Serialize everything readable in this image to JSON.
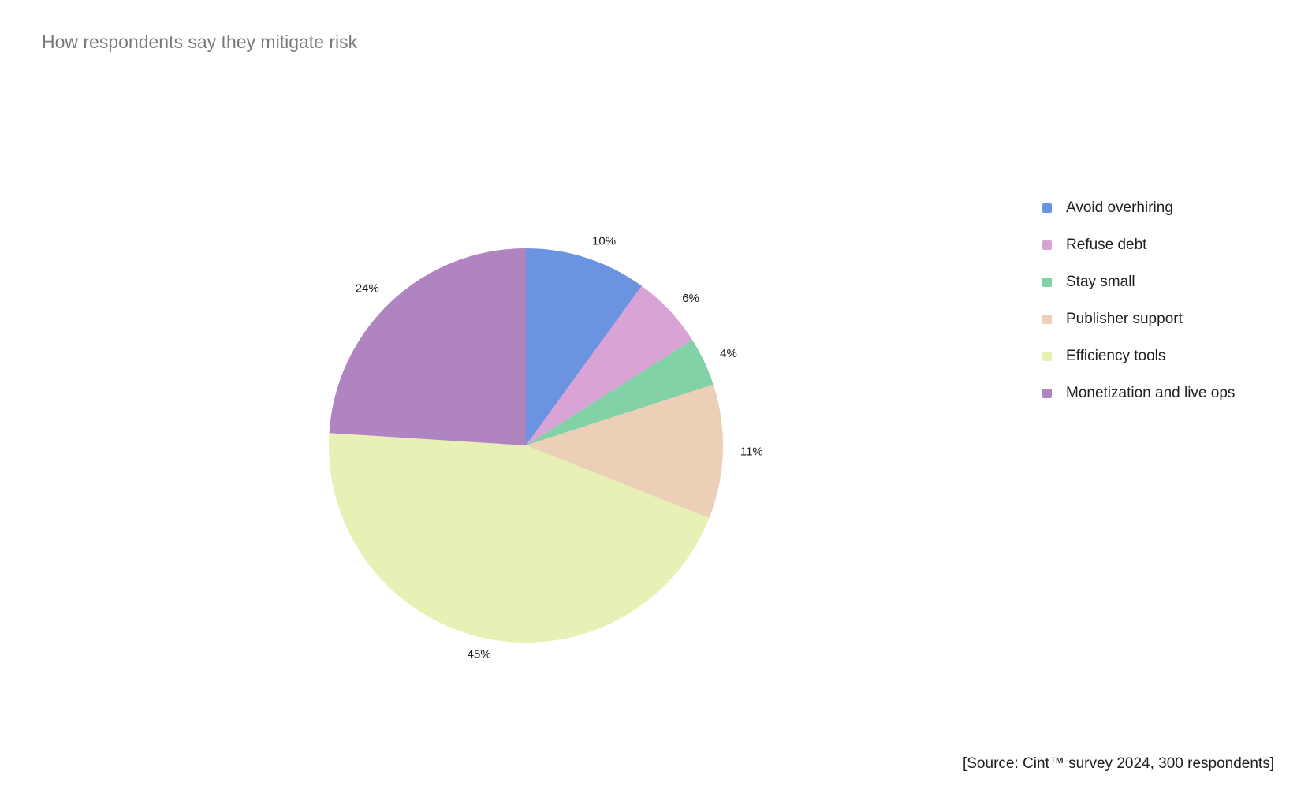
{
  "chart_data": {
    "type": "pie",
    "title": "How respondents say they mitigate risk",
    "categories": [
      "Avoid overhiring",
      "Refuse debt",
      "Stay small",
      "Publisher support",
      "Efficiency tools",
      "Monetization and live ops"
    ],
    "values": [
      10,
      6,
      4,
      11,
      45,
      24
    ],
    "value_labels": [
      "10%",
      "6%",
      "4%",
      "11%",
      "45%",
      "24%"
    ],
    "colors": [
      "#6a93e0",
      "#d9a3d6",
      "#82d1a7",
      "#ebcfb6",
      "#e7f1b6",
      "#b084c1"
    ],
    "legend_placement": "right",
    "start_angle": "12 o'clock, clockwise",
    "source": "[Source: Cint™ survey 2024, 300 respondents]"
  }
}
